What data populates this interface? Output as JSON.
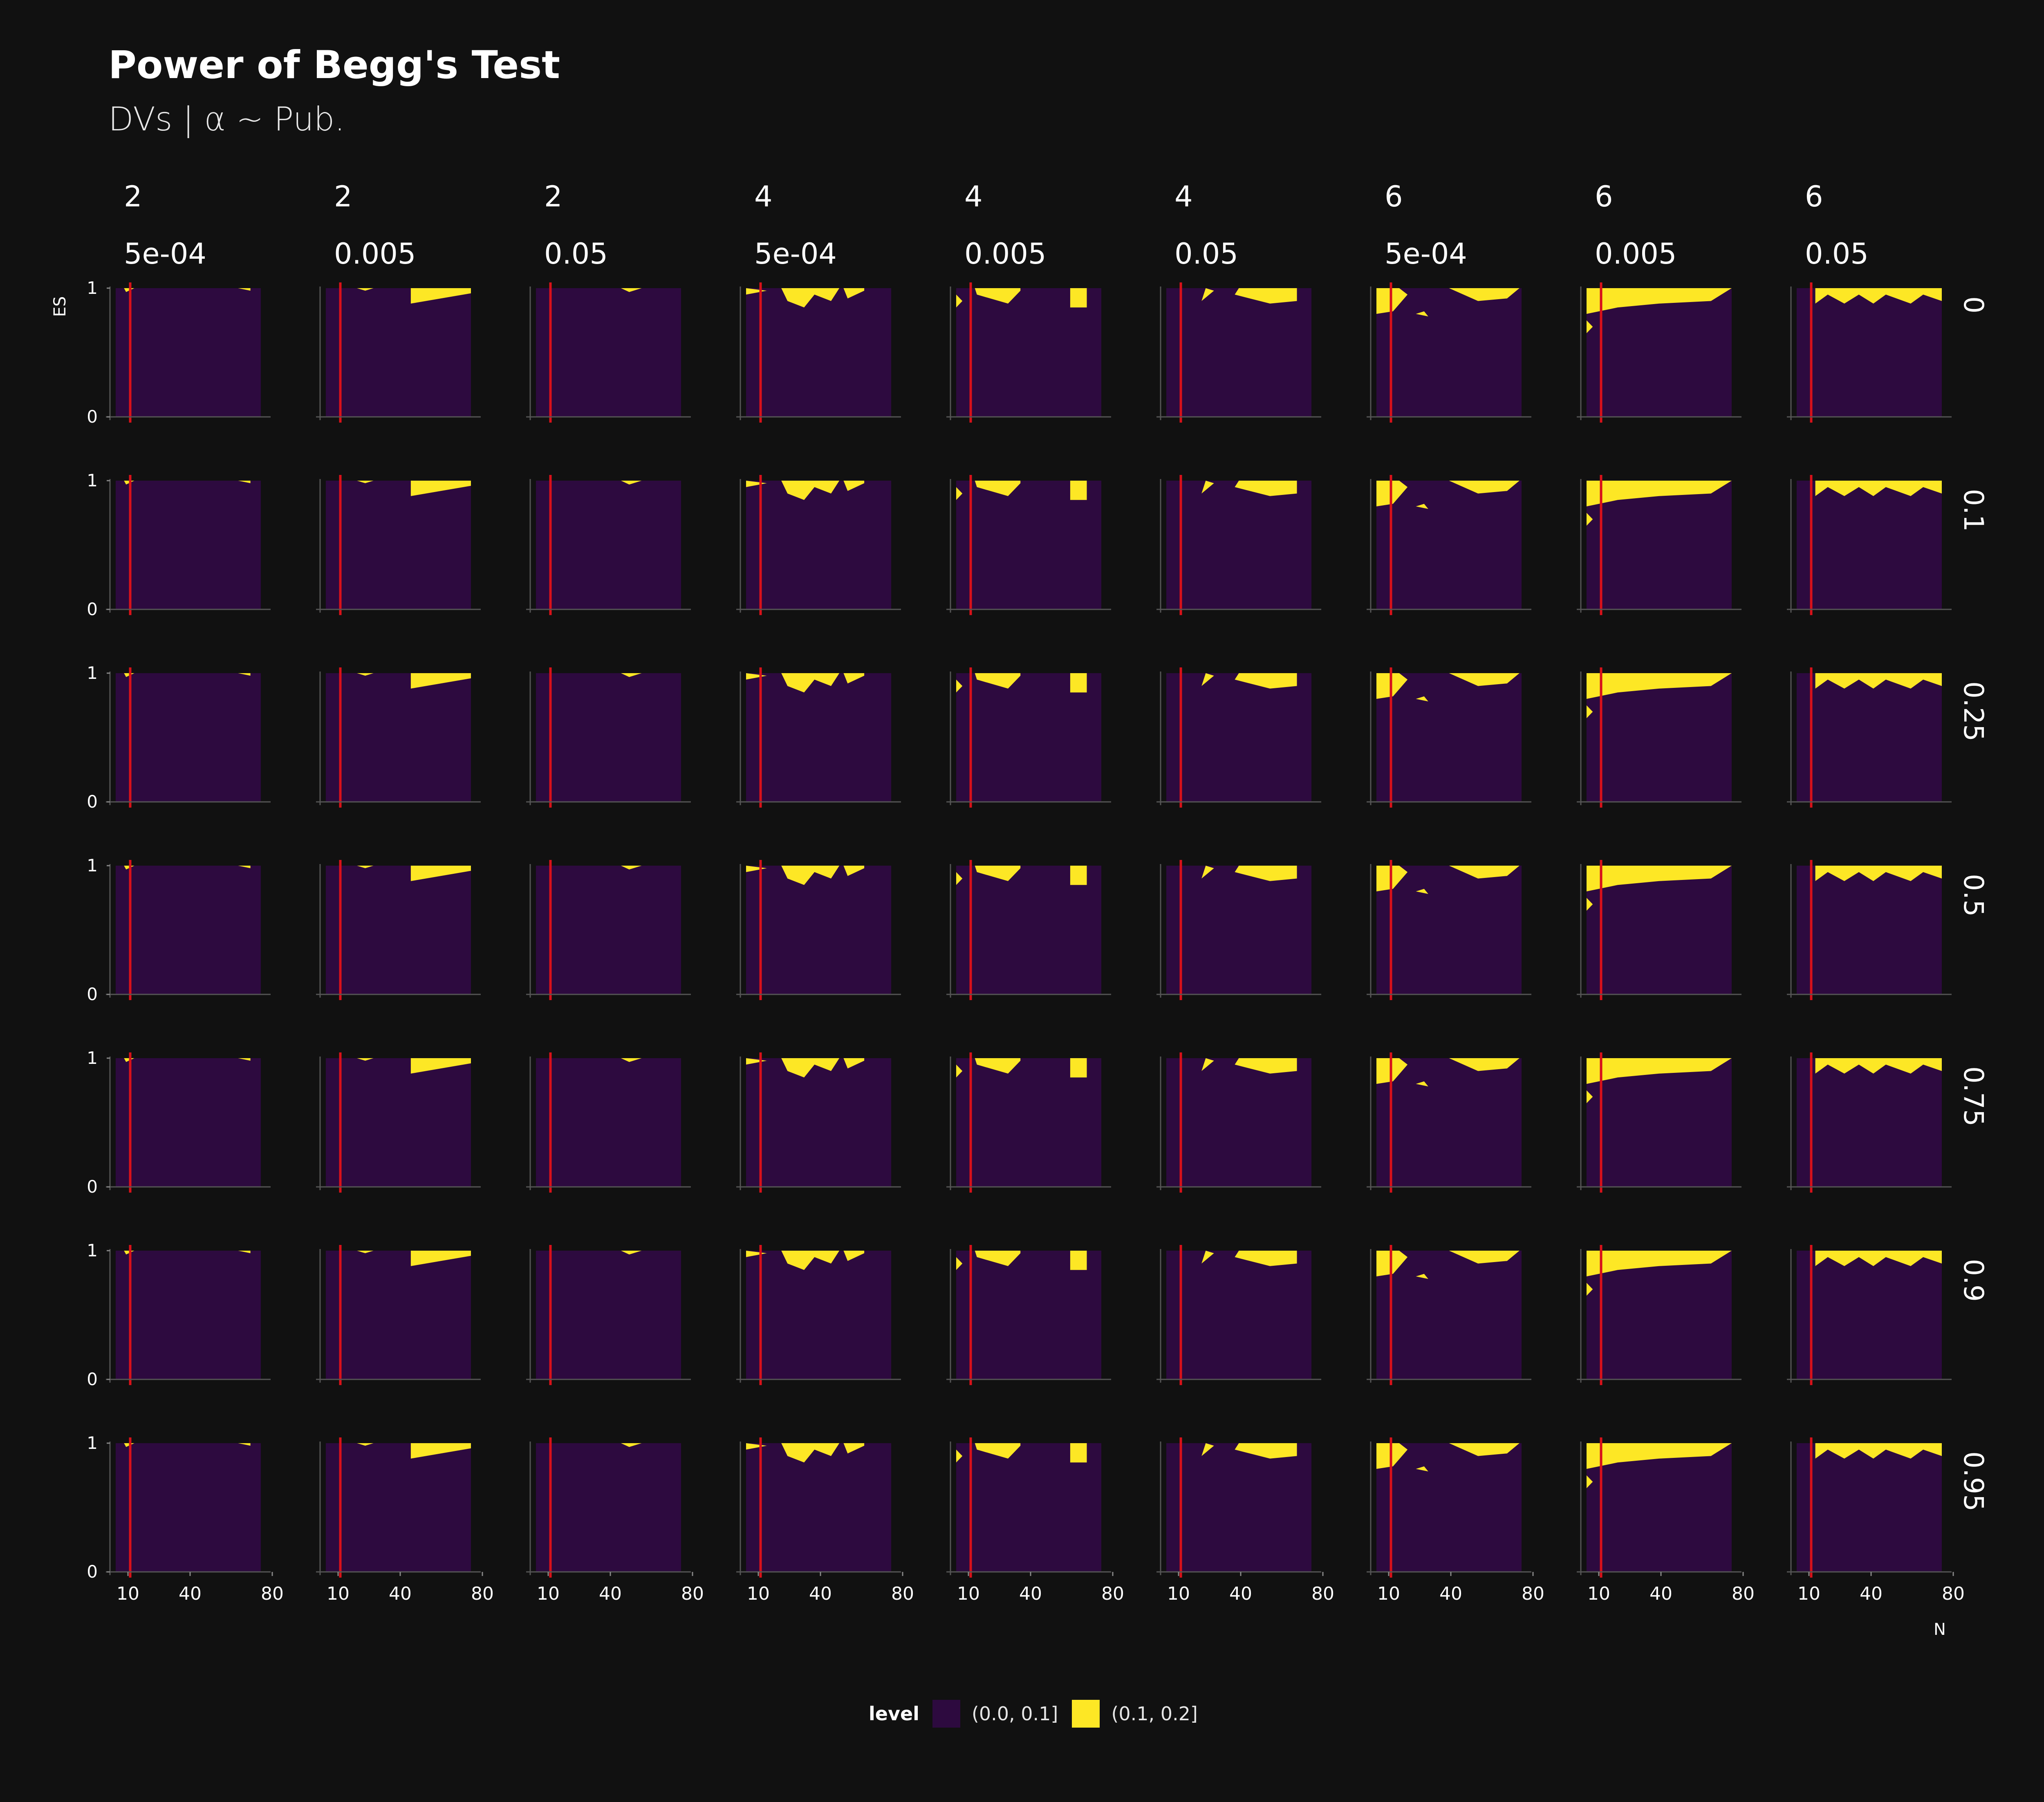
{
  "title": "Power of Begg's Test",
  "subtitle": "DVs | α ~ Pub.",
  "colors": {
    "background": "#111111",
    "low_fill": "#2d0a3f",
    "high_fill": "#fde725",
    "reference_line": "#d8111a"
  },
  "legend": {
    "title": "level",
    "items": [
      {
        "label": "(0.0, 0.1]",
        "color": "#2d0a3f"
      },
      {
        "label": "(0.1, 0.2]",
        "color": "#fde725"
      }
    ]
  },
  "chart_data": {
    "type": "heatmap",
    "title": "Power of Begg's Test",
    "subtitle": "DVs | α ~ Pub.",
    "xlabel": "N",
    "ylabel": "ES",
    "xlim": [
      5,
      75
    ],
    "ylim": [
      0,
      1
    ],
    "x_ticks": [
      10,
      40,
      80
    ],
    "y_ticks": [
      0,
      1
    ],
    "reference_line_x": 12,
    "grid": false,
    "legend_placement": "bottom",
    "column_facets": [
      {
        "dvs": "2",
        "alpha": "5e-04"
      },
      {
        "dvs": "2",
        "alpha": "0.005"
      },
      {
        "dvs": "2",
        "alpha": "0.05"
      },
      {
        "dvs": "4",
        "alpha": "5e-04"
      },
      {
        "dvs": "4",
        "alpha": "0.005"
      },
      {
        "dvs": "4",
        "alpha": "0.05"
      },
      {
        "dvs": "6",
        "alpha": "5e-04"
      },
      {
        "dvs": "6",
        "alpha": "0.005"
      },
      {
        "dvs": "6",
        "alpha": "0.05"
      }
    ],
    "row_facets": [
      "0",
      "0.1",
      "0.25",
      "0.5",
      "0.75",
      "0.9",
      "0.95"
    ],
    "levels": [
      "(0.0, 0.1]",
      "(0.1, 0.2]"
    ],
    "high_level_regions": [
      [
        [
          [
            10,
            0.97
          ],
          [
            14,
            1.0
          ],
          [
            9,
            1.0
          ]
        ],
        [
          [
            64,
            1.0
          ],
          [
            70,
            0.98
          ],
          [
            70,
            1.0
          ]
        ]
      ],
      [
        [
          [
            24,
            0.98
          ],
          [
            28,
            1.0
          ],
          [
            20,
            1.0
          ]
        ],
        [
          [
            46,
            0.88
          ],
          [
            75,
            0.96
          ],
          [
            75,
            1.0
          ],
          [
            46,
            1.0
          ]
        ]
      ],
      [
        [
          [
            50,
            0.97
          ],
          [
            56,
            1.0
          ],
          [
            46,
            1.0
          ]
        ]
      ],
      [
        [
          [
            5,
            0.95
          ],
          [
            15,
            0.98
          ],
          [
            5,
            1.0
          ]
        ],
        [
          [
            25,
            0.9
          ],
          [
            33,
            0.85
          ],
          [
            38,
            0.95
          ],
          [
            46,
            0.9
          ],
          [
            50,
            1.0
          ],
          [
            22,
            1.0
          ]
        ],
        [
          [
            54,
            0.92
          ],
          [
            62,
            0.98
          ],
          [
            62,
            1.0
          ],
          [
            52,
            1.0
          ]
        ]
      ],
      [
        [
          [
            5,
            0.85
          ],
          [
            8,
            0.9
          ],
          [
            5,
            0.95
          ]
        ],
        [
          [
            15,
            0.95
          ],
          [
            30,
            0.88
          ],
          [
            36,
            0.98
          ],
          [
            36,
            1.0
          ],
          [
            14,
            1.0
          ]
        ],
        [
          [
            60,
            0.85
          ],
          [
            68,
            0.85
          ],
          [
            68,
            1.0
          ],
          [
            60,
            1.0
          ]
        ]
      ],
      [
        [
          [
            22,
            0.9
          ],
          [
            28,
            0.98
          ],
          [
            24,
            1.0
          ]
        ],
        [
          [
            38,
            0.95
          ],
          [
            55,
            0.88
          ],
          [
            68,
            0.9
          ],
          [
            68,
            1.0
          ],
          [
            40,
            1.0
          ]
        ]
      ],
      [
        [
          [
            5,
            0.8
          ],
          [
            13,
            0.82
          ],
          [
            20,
            0.95
          ],
          [
            16,
            1.0
          ],
          [
            5,
            1.0
          ]
        ],
        [
          [
            24,
            0.8
          ],
          [
            30,
            0.78
          ],
          [
            28,
            0.82
          ]
        ],
        [
          [
            54,
            0.9
          ],
          [
            68,
            0.92
          ],
          [
            74,
            1.0
          ],
          [
            40,
            1.0
          ]
        ]
      ],
      [
        [
          [
            5,
            0.8
          ],
          [
            20,
            0.85
          ],
          [
            40,
            0.88
          ],
          [
            65,
            0.9
          ],
          [
            75,
            1.0
          ],
          [
            5,
            1.0
          ]
        ],
        [
          [
            5,
            0.65
          ],
          [
            8,
            0.7
          ],
          [
            5,
            0.75
          ]
        ]
      ],
      [
        [
          [
            14,
            0.88
          ],
          [
            20,
            0.95
          ],
          [
            28,
            0.88
          ],
          [
            35,
            0.95
          ],
          [
            42,
            0.88
          ],
          [
            48,
            0.95
          ],
          [
            60,
            0.88
          ],
          [
            66,
            0.95
          ],
          [
            75,
            0.9
          ],
          [
            75,
            1.0
          ],
          [
            14,
            1.0
          ]
        ]
      ]
    ]
  }
}
